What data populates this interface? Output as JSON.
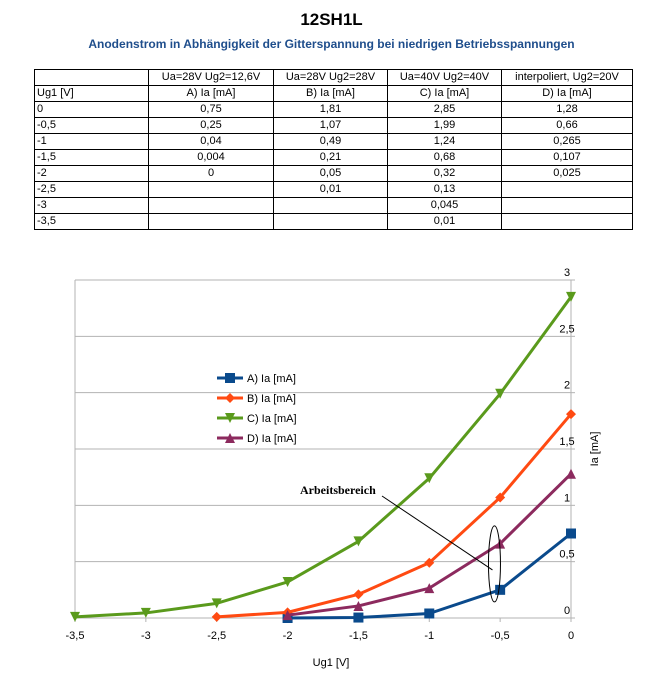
{
  "title": "12SH1L",
  "subtitle": "Anodenstrom in Abhängigkeit der Gitterspannung bei niedrigen Betriebsspannungen",
  "table": {
    "header1": [
      "",
      "Ua=28V Ug2=12,6V",
      "Ua=28V Ug2=28V",
      "Ua=40V Ug2=40V",
      "interpoliert, Ug2=20V"
    ],
    "header2": [
      "Ug1 [V]",
      "A) Ia [mA]",
      "B) Ia [mA]",
      "C) Ia [mA]",
      "D) Ia [mA]"
    ],
    "rows": [
      [
        "0",
        "0,75",
        "1,81",
        "2,85",
        "1,28"
      ],
      [
        "-0,5",
        "0,25",
        "1,07",
        "1,99",
        "0,66"
      ],
      [
        "-1",
        "0,04",
        "0,49",
        "1,24",
        "0,265"
      ],
      [
        "-1,5",
        "0,004",
        "0,21",
        "0,68",
        "0,107"
      ],
      [
        "-2",
        "0",
        "0,05",
        "0,32",
        "0,025"
      ],
      [
        "-2,5",
        "",
        "0,01",
        "0,13",
        ""
      ],
      [
        "-3",
        "",
        "",
        "0,045",
        ""
      ],
      [
        "-3,5",
        "",
        "",
        "0,01",
        ""
      ]
    ]
  },
  "chart_data": {
    "type": "line",
    "xlabel": "Ug1 [V]",
    "ylabel": "Ia [mA]",
    "xlim": [
      -3.5,
      0
    ],
    "ylim": [
      0,
      3
    ],
    "x_ticks": [
      "-3,5",
      "-3",
      "-2,5",
      "-2",
      "-1,5",
      "-1",
      "-0,5",
      "0"
    ],
    "y_ticks": [
      "0",
      "0,5",
      "1",
      "1,5",
      "2",
      "2,5",
      "3"
    ],
    "grid": "horizontal",
    "legend_position": "left-middle",
    "annotation": "Arbeitsbereich",
    "series": [
      {
        "name": "A) Ia [mA]",
        "color": "#0a4a8c",
        "marker": "square",
        "x": [
          -2,
          -1.5,
          -1,
          -0.5,
          0
        ],
        "values": [
          0,
          0.004,
          0.04,
          0.25,
          0.75
        ]
      },
      {
        "name": "B) Ia [mA]",
        "color": "#ff4a12",
        "marker": "diamond",
        "x": [
          -2.5,
          -2,
          -1.5,
          -1,
          -0.5,
          0
        ],
        "values": [
          0.01,
          0.05,
          0.21,
          0.49,
          1.07,
          1.81
        ]
      },
      {
        "name": "C) Ia [mA]",
        "color": "#5a9a1c",
        "marker": "triangle-down",
        "x": [
          -3.5,
          -3,
          -2.5,
          -2,
          -1.5,
          -1,
          -0.5,
          0
        ],
        "values": [
          0.01,
          0.045,
          0.13,
          0.32,
          0.68,
          1.24,
          1.99,
          2.85
        ]
      },
      {
        "name": "D) Ia [mA]",
        "color": "#8c2a5e",
        "marker": "triangle-up",
        "x": [
          -2,
          -1.5,
          -1,
          -0.5,
          0
        ],
        "values": [
          0.025,
          0.107,
          0.265,
          0.66,
          1.28
        ]
      }
    ]
  }
}
